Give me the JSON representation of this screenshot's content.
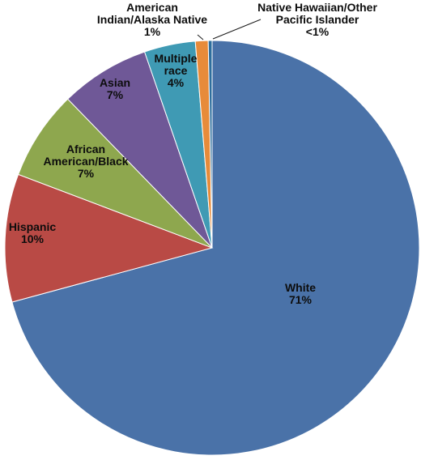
{
  "chart_data": {
    "type": "pie",
    "title": "",
    "slices": [
      {
        "label": "White",
        "value": 71,
        "value_label": "71%",
        "color": "#4a72a8"
      },
      {
        "label": "Hispanic",
        "value": 10,
        "value_label": "10%",
        "color": "#b94a45"
      },
      {
        "label": "African American/Black",
        "value": 7,
        "value_label": "7%",
        "color": "#8ea74e"
      },
      {
        "label": "Asian",
        "value": 7,
        "value_label": "7%",
        "color": "#6f5897"
      },
      {
        "label": "Multiple race",
        "value": 4,
        "value_label": "4%",
        "color": "#3f9ab4"
      },
      {
        "label": "American Indian/Alaska Native",
        "value": 1,
        "value_label": "1%",
        "color": "#e78b3a"
      },
      {
        "label": "Native Hawaiian/Other Pacific Islander",
        "value": 0.3,
        "value_label": "<1%",
        "color": "#2e6f9e"
      }
    ],
    "start_angle_deg": 0,
    "direction": "clockwise",
    "legend": "none",
    "data_labels": "category and percentage"
  }
}
